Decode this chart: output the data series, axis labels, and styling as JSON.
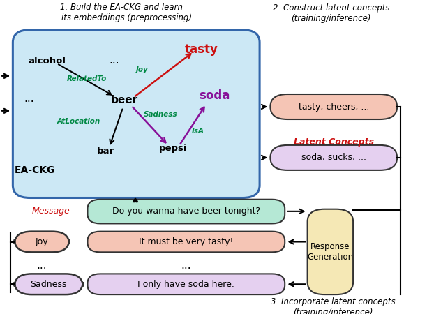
{
  "title1": "1. Build the EA-CKG and learn\n    its embeddings (preprocessing)",
  "title2": "2. Construct latent concepts\n(training/inference)",
  "title3": "3. Incorporate latent concepts\n(training/inference)",
  "kg_color": "#cce8f5",
  "kg_edge": "#3366aa",
  "latent1_color": "#f5c5b5",
  "latent2_color": "#e5d0f0",
  "msg_color": "#b5e8d5",
  "joy_color": "#f5c5b5",
  "sad_color": "#e5d0f0",
  "rg_color": "#f5e8b5",
  "red": "#cc1111",
  "green": "#008844",
  "purple": "#881199",
  "dark": "#222222",
  "box_edge": "#333333"
}
